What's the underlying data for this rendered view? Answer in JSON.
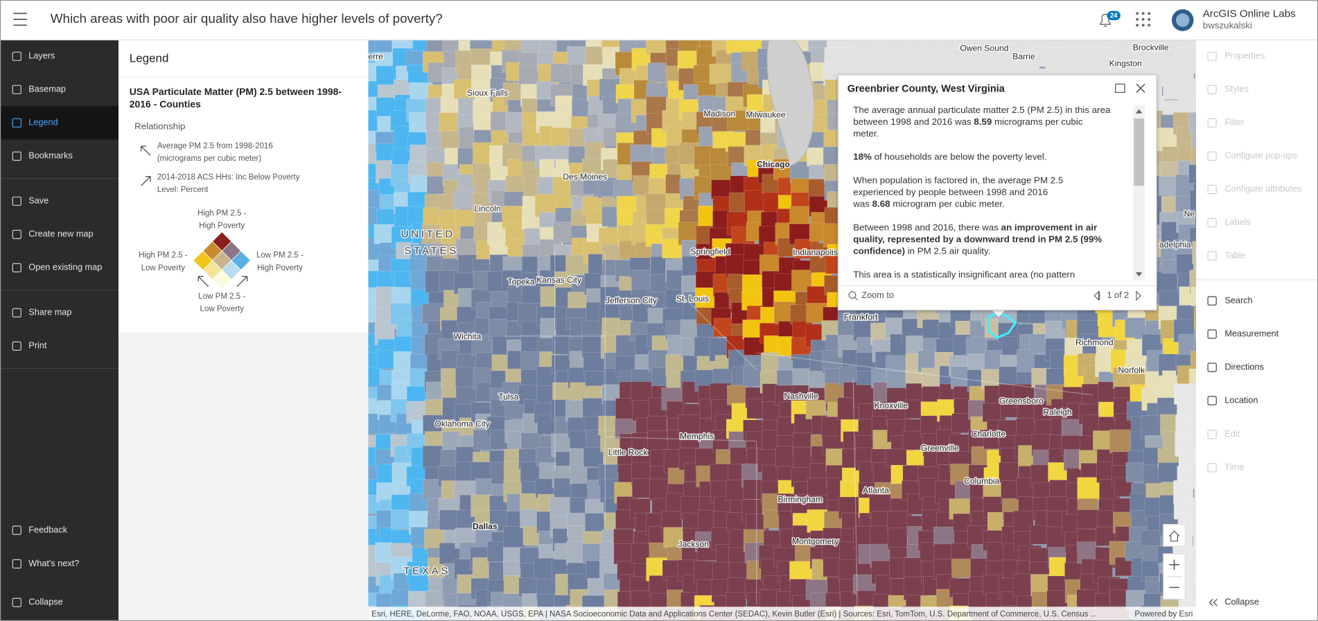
{
  "header": {
    "title": "Which areas with poor air quality also have higher levels of poverty?",
    "notification_count": "24",
    "org": "ArcGIS Online Labs",
    "user": "bwszukalski"
  },
  "left_toolbar": {
    "groups": [
      [
        "Layers",
        "Basemap",
        "Legend",
        "Bookmarks"
      ],
      [
        "Save",
        "Create new map",
        "Open existing map"
      ],
      [
        "Share map",
        "Print"
      ]
    ],
    "bottom_items": [
      "Feedback",
      "What's next?",
      "Collapse"
    ]
  },
  "legend_panel": {
    "title": "Legend",
    "layer_title": [
      "USA Particulate Matter (PM) 2.5 between 1998-",
      "2016 - Counties"
    ],
    "relationship": "Relationship",
    "axis_1": [
      "Average PM 2.5 from 1998-2016",
      "(micrograms per cubic meter)"
    ],
    "axis_2": [
      "2014-2018 ACS HHs: Inc Below Poverty",
      "Level: Percent"
    ],
    "top": [
      "High PM 2.5 -",
      "High Poverty"
    ],
    "left": [
      "High PM 2.5 -",
      "Low Poverty"
    ],
    "right": [
      "Low PM 2.5 -",
      "High Poverty"
    ],
    "bottom": [
      "Low PM 2.5 -",
      "Low Poverty"
    ]
  },
  "map_labels": [
    "erre",
    "Sioux Falls",
    "Madison",
    "Milwaukee",
    "Chicago",
    "Des Moines",
    "Lincoln",
    "Springfield",
    "Indianapolis",
    "Topeka",
    "Kansas City",
    "Jefferson City",
    "St. Louis",
    "Frankfort",
    "Wichita",
    "Tulsa",
    "Oklahoma City",
    "Memphis",
    "Little Rock",
    "Nashville",
    "Knoxville",
    "Greensboro",
    "Raleigh",
    "Charlotte",
    "Greenville",
    "Columbia",
    "Atlanta",
    "Birmingham",
    "Montgomery",
    "Jackson",
    "Dallas",
    "TEXAS",
    "UNITED",
    "STATES",
    "Owen Sound",
    "Barrie",
    "Brockville",
    "Kingston",
    "Richmond",
    "Norfolk",
    "Ne",
    "adelphia"
  ],
  "popup": {
    "title": "Greenbrier County, West Virginia",
    "paragraphs": [
      [
        [
          "The average annual particulate matter 2.5 (PM 2.5) in this area"
        ],
        [
          "between 1998 and 2016 was ",
          {
            "b": "8.59"
          },
          " micrograms per cubic"
        ],
        [
          "meter."
        ]
      ],
      [
        [
          {
            "b": "18%"
          },
          " of households are below the poverty level."
        ]
      ],
      [
        [
          "When population is factored in, the average PM 2.5"
        ],
        [
          "experienced by people between 1998 and 2016"
        ],
        [
          "was ",
          {
            "b": "8.68"
          },
          " microgram per cubic meter."
        ]
      ],
      [
        [
          "Between 1998 and 2016, there was ",
          {
            "b": "an improvement in air"
          }
        ],
        [
          {
            "b": "quality, represented by a downward trend in PM 2.5 (99%"
          }
        ],
        [
          {
            "b": "confidence)"
          },
          " in PM 2.5 air quality."
        ]
      ],
      [
        [
          "This area is a statistically insignificant area (no pattern"
        ]
      ]
    ],
    "zoom_to": "Zoom to",
    "pager": "1 of 2"
  },
  "right_toolbar": {
    "disabled_top": [
      "Properties",
      "Styles",
      "Filter",
      "Configure pop-ups",
      "Configure attributes",
      "Labels",
      "Table"
    ],
    "tools": [
      "Search",
      "Measurement",
      "Directions",
      "Location"
    ],
    "disabled_bottom": [
      "Edit",
      "Time"
    ],
    "collapse": "Collapse"
  },
  "attribution": {
    "sources": "Esri, HERE, DeLorme, FAO, NOAA, USGS, EPA | NASA Socioeconomic Data and Applications Center (SEDAC), Kevin Butler (Esri) | Sources: Esri, TomTom, U.S. Department of Commerce, U.S. Census ...",
    "powered": "Powered by Esri"
  }
}
